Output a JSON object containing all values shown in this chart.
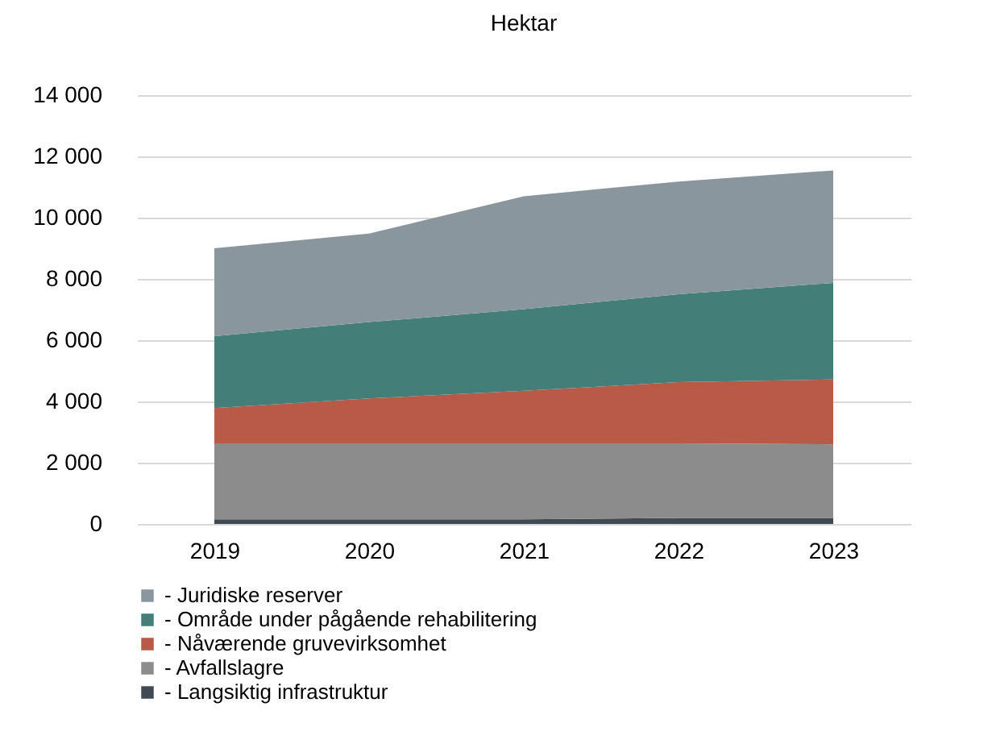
{
  "chart_data": {
    "type": "area",
    "title": "Hektar",
    "stacked": true,
    "categories": [
      "2019",
      "2020",
      "2021",
      "2022",
      "2023"
    ],
    "series": [
      {
        "name": "- Langsiktig infrastruktur",
        "color": "#414a52",
        "values": [
          150,
          150,
          150,
          200,
          200
        ]
      },
      {
        "name": "- Avfallslagre",
        "color": "#8c8c8c",
        "values": [
          2480,
          2480,
          2480,
          2430,
          2400
        ]
      },
      {
        "name": "- Nåværende gruvevirksomhet",
        "color": "#b85a47",
        "values": [
          1150,
          1470,
          1720,
          2000,
          2120
        ]
      },
      {
        "name": "- Område under pågående rehabilitering",
        "color": "#437f78",
        "values": [
          2350,
          2490,
          2660,
          2870,
          3150
        ]
      },
      {
        "name": "- Juridiske reserver",
        "color": "#8a969e",
        "values": [
          2870,
          2890,
          3690,
          3680,
          3670
        ]
      }
    ],
    "ylim": [
      0,
      14000
    ],
    "yticks": [
      {
        "value": 0,
        "label": "0"
      },
      {
        "value": 2000,
        "label": "2 000"
      },
      {
        "value": 4000,
        "label": "4 000"
      },
      {
        "value": 6000,
        "label": "6 000"
      },
      {
        "value": 8000,
        "label": "8 000"
      },
      {
        "value": 10000,
        "label": "10 000"
      },
      {
        "value": 12000,
        "label": "12 000"
      },
      {
        "value": 14000,
        "label": "14 000"
      }
    ],
    "grid": "y",
    "legend": "bottom"
  }
}
